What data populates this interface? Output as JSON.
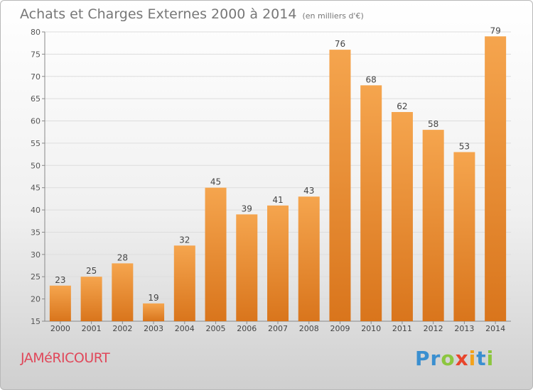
{
  "header": {
    "title": "Achats et Charges Externes 2000 à 2014",
    "unit": "(en milliers d'€)"
  },
  "footer": {
    "commune": "JAMéRICOURT",
    "logo": {
      "text": "Proxiti",
      "letters": [
        {
          "ch": "P",
          "color": "#3a8fd0"
        },
        {
          "ch": "r",
          "color": "#3a8fd0"
        },
        {
          "ch": "o",
          "color": "#8cc63f"
        },
        {
          "ch": "x",
          "color": "#e8452c"
        },
        {
          "ch": "i",
          "color": "#f3a21b"
        },
        {
          "ch": "t",
          "color": "#3a8fd0"
        },
        {
          "ch": "i",
          "color": "#8cc63f"
        }
      ]
    }
  },
  "chart_data": {
    "type": "bar",
    "categories": [
      "2000",
      "2001",
      "2002",
      "2003",
      "2004",
      "2005",
      "2006",
      "2007",
      "2008",
      "2009",
      "2010",
      "2011",
      "2012",
      "2013",
      "2014"
    ],
    "values": [
      23,
      25,
      28,
      19,
      32,
      45,
      39,
      41,
      43,
      76,
      68,
      62,
      58,
      53,
      79
    ],
    "title": "Achats et Charges Externes 2000 à 2014",
    "ylim": [
      15,
      80
    ],
    "yticks": [
      15,
      20,
      25,
      30,
      35,
      40,
      45,
      50,
      55,
      60,
      65,
      70,
      75,
      80
    ],
    "grid": true,
    "colors": {
      "bar_top": "#f5a54e",
      "bar_bottom": "#d9751c",
      "grid": "#dddddd",
      "axis": "#888888"
    }
  }
}
